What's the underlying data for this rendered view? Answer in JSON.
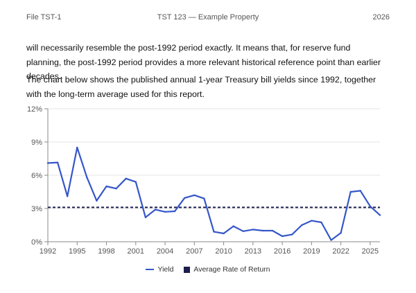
{
  "header": {
    "left": "File TST-1",
    "center": "TST 123 — Example Property",
    "right": "2026"
  },
  "body": {
    "para1": "will necessarily resemble the post-1992 period exactly. It means that, for reserve fund planning, the post-1992 period provides a more relevant historical reference point than earlier decades.",
    "para2": "The chart below shows the published annual 1-year Treasury bill yields since 1992, together with the long-term average used for this report."
  },
  "colors": {
    "yield_line": "#3556c9",
    "average_line": "#1d1d4d",
    "grid": "#e6e6e6"
  },
  "chart_data": {
    "type": "line",
    "x": [
      1992,
      1993,
      1994,
      1995,
      1996,
      1997,
      1998,
      1999,
      2000,
      2001,
      2002,
      2003,
      2004,
      2005,
      2006,
      2007,
      2008,
      2009,
      2010,
      2011,
      2012,
      2013,
      2014,
      2015,
      2016,
      2017,
      2018,
      2019,
      2020,
      2021,
      2022,
      2023,
      2024,
      2025,
      2026
    ],
    "series": [
      {
        "name": "Yield",
        "values": [
          7.1,
          7.15,
          4.1,
          8.5,
          5.8,
          3.7,
          5.0,
          4.8,
          5.7,
          5.4,
          2.2,
          2.9,
          2.7,
          2.75,
          3.95,
          4.2,
          3.9,
          0.9,
          0.75,
          1.4,
          0.95,
          1.1,
          1.0,
          1.0,
          0.5,
          0.65,
          1.5,
          1.9,
          1.75,
          0.15,
          0.8,
          4.5,
          4.6,
          3.2,
          2.4
        ]
      }
    ],
    "reference_line": {
      "name": "Average Rate of Return",
      "value": 3.1
    },
    "x_ticks": [
      1992,
      1995,
      1998,
      2001,
      2004,
      2007,
      2010,
      2013,
      2016,
      2019,
      2022,
      2025
    ],
    "y_ticks": [
      0,
      3,
      6,
      9,
      12
    ],
    "y_tick_labels": [
      "0%",
      "3%",
      "6%",
      "9%",
      "12%"
    ],
    "xlim": [
      1992,
      2026
    ],
    "ylim": [
      0,
      12
    ],
    "grid": "horizontal",
    "legend_position": "bottom-center",
    "legend": [
      "Yield",
      "Average Rate of Return"
    ]
  }
}
